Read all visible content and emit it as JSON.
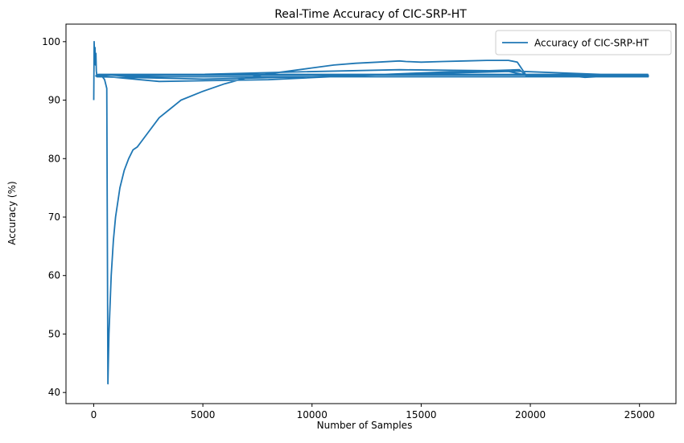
{
  "chart_data": {
    "type": "line",
    "title": "Real-Time Accuracy of CIC-SRP-HT",
    "xlabel": "Number of Samples",
    "ylabel": "Accuracy (%)",
    "xlim": [
      -1270,
      26670
    ],
    "ylim": [
      38.1,
      103.0
    ],
    "xticks": [
      0,
      5000,
      10000,
      15000,
      20000,
      25000
    ],
    "yticks": [
      40,
      50,
      60,
      70,
      80,
      90,
      100
    ],
    "grid": false,
    "legend_position": "top-right",
    "series": [
      {
        "name": "Accuracy of CIC-SRP-HT",
        "color": "#1f77b4",
        "x": [
          0,
          20,
          40,
          60,
          80,
          100,
          120,
          150,
          200,
          300,
          400,
          500,
          600,
          650,
          700,
          800,
          900,
          1000,
          1200,
          1400,
          1600,
          1800,
          2000,
          2200,
          2500,
          3000,
          3500,
          4000,
          5000,
          6000,
          7000,
          8000,
          9000,
          10000,
          11000,
          12000,
          13000,
          14000,
          14300,
          15000,
          16000,
          17000,
          18000,
          19000,
          19400,
          19800,
          20000,
          21000,
          22000,
          22500,
          23000,
          24000,
          25400,
          25400,
          20000,
          15000,
          10000,
          5000,
          600,
          200,
          200,
          5000,
          10000,
          15000,
          19000,
          19800,
          25400,
          25400,
          19000,
          14000,
          9000,
          5000,
          2000,
          600,
          100,
          100,
          3000,
          8000,
          12000,
          16000,
          19500,
          19800,
          25400,
          25400,
          10000,
          2000,
          200,
          2000,
          10000,
          25400
        ],
        "y": [
          90,
          100,
          97,
          99,
          96,
          98,
          95,
          94,
          94,
          94,
          94,
          93.5,
          92,
          41.5,
          50,
          60,
          66,
          70,
          75,
          78,
          80,
          81.5,
          82,
          83,
          84.5,
          87,
          88.5,
          90,
          91.5,
          92.8,
          93.8,
          94.5,
          95,
          95.5,
          96,
          96.3,
          96.5,
          96.7,
          96.6,
          96.5,
          96.6,
          96.7,
          96.8,
          96.8,
          96.5,
          94.3,
          94.2,
          94.2,
          94.1,
          93.9,
          94,
          94.1,
          94.2,
          94.3,
          94.3,
          94.3,
          94.3,
          94.3,
          94.3,
          94.3,
          94,
          93.6,
          94,
          94.5,
          94.9,
          94.3,
          94.2,
          94.1,
          95,
          95.2,
          94.8,
          94.4,
          94.2,
          94.3,
          94.1,
          94.2,
          93.2,
          93.5,
          94.2,
          94.8,
          95.2,
          94.2,
          94.1,
          94,
          94,
          94,
          94.4,
          94.4,
          94.4,
          94.4
        ]
      }
    ]
  }
}
